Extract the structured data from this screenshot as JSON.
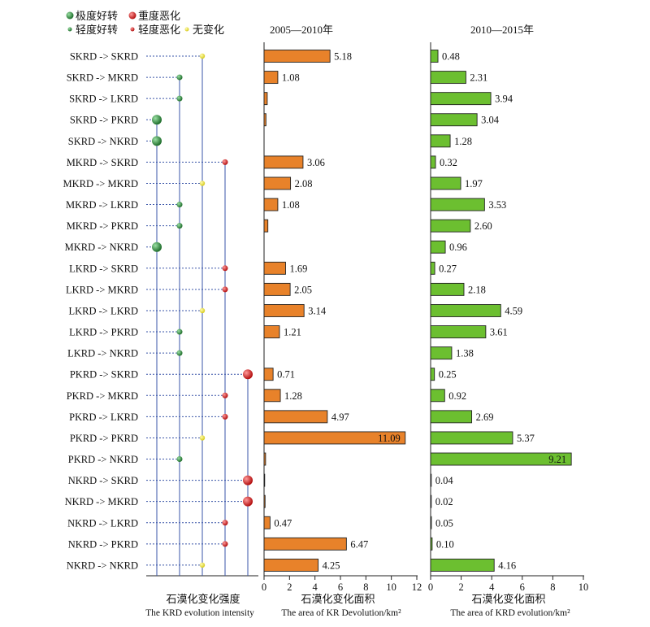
{
  "legend": [
    {
      "label": "极度好转",
      "kind": "big",
      "color": "#2e8b3e"
    },
    {
      "label": "重度恶化",
      "kind": "big",
      "color": "#d42020"
    },
    {
      "label": "轻度好转",
      "kind": "small",
      "color": "#2e8b3e"
    },
    {
      "label": "轻度恶化",
      "kind": "small",
      "color": "#d42020"
    },
    {
      "label": "无变化",
      "kind": "small",
      "color": "#e8e030"
    }
  ],
  "intensity_colors": {
    "big_green": "#2e8b3e",
    "green": "#2e8b3e",
    "yellow": "#e8e030",
    "red": "#d42020",
    "big_red": "#d42020"
  },
  "panel_titles": {
    "p2": "2005—2010年",
    "p3": "2010—2015年"
  },
  "xlabels": {
    "p1_cn": "石漠化变化强度",
    "p1_en": "The KRD evolution intensity",
    "p2_cn": "石漠化变化面积",
    "p2_en": "The area of KR Devolution/km²",
    "p3_cn": "石漠化变化面积",
    "p3_en": "The area of KRD evolution/km²"
  },
  "chart_data": [
    {
      "type": "scatter",
      "panel": "intensity",
      "categories": [
        "SKRD -> SKRD",
        "SKRD -> MKRD",
        "SKRD -> LKRD",
        "SKRD -> PKRD",
        "SKRD -> NKRD",
        "MKRD -> SKRD",
        "MKRD -> MKRD",
        "MKRD -> LKRD",
        "MKRD -> PKRD",
        "MKRD -> NKRD",
        "LKRD -> SKRD",
        "LKRD -> MKRD",
        "LKRD -> LKRD",
        "LKRD -> PKRD",
        "LKRD -> NKRD",
        "PKRD -> SKRD",
        "PKRD -> MKRD",
        "PKRD -> LKRD",
        "PKRD -> PKRD",
        "PKRD -> NKRD",
        "NKRD -> SKRD",
        "NKRD -> MKRD",
        "NKRD -> LKRD",
        "NKRD -> PKRD",
        "NKRD -> NKRD"
      ],
      "x_levels": [
        "极度好转",
        "轻度好转",
        "无变化",
        "轻度恶化",
        "重度恶化"
      ],
      "values": [
        "无变化",
        "轻度好转",
        "轻度好转",
        "极度好转",
        "极度好转",
        "轻度恶化",
        "无变化",
        "轻度好转",
        "轻度好转",
        "极度好转",
        "轻度恶化",
        "轻度恶化",
        "无变化",
        "轻度好转",
        "轻度好转",
        "重度恶化",
        "轻度恶化",
        "轻度恶化",
        "无变化",
        "轻度好转",
        "重度恶化",
        "重度恶化",
        "轻度恶化",
        "轻度恶化",
        "无变化"
      ],
      "xlabel": "石漠化变化强度 The KRD evolution intensity"
    },
    {
      "type": "bar",
      "panel": "2005-2010",
      "title": "2005—2010年",
      "color": "#e8822a",
      "values": [
        5.18,
        1.08,
        0.25,
        0.15,
        0,
        3.06,
        2.08,
        1.08,
        0.3,
        0,
        1.69,
        2.05,
        3.14,
        1.21,
        0,
        0.71,
        1.28,
        4.97,
        11.09,
        0.12,
        0.05,
        0.08,
        0.47,
        6.47,
        4.25
      ],
      "labels": [
        "5.18",
        "1.08",
        "",
        "",
        "",
        "3.06",
        "2.08",
        "1.08",
        "",
        "",
        "1.69",
        "2.05",
        "3.14",
        "1.21",
        "",
        "0.71",
        "1.28",
        "4.97",
        "11.09",
        "",
        "",
        "",
        "0.47",
        "6.47",
        "4.25"
      ],
      "xlim": [
        0,
        12
      ],
      "xticks": [
        0,
        2,
        4,
        6,
        8,
        10,
        12
      ],
      "xlabel": "石漠化变化面积 The area of KR Devolution/km²"
    },
    {
      "type": "bar",
      "panel": "2010-2015",
      "title": "2010—2015年",
      "color": "#6cbf30",
      "values": [
        0.48,
        2.31,
        3.94,
        3.04,
        1.28,
        0.32,
        1.97,
        3.53,
        2.6,
        0.96,
        0.27,
        2.18,
        4.59,
        3.61,
        1.38,
        0.25,
        0.92,
        2.69,
        5.37,
        9.21,
        0.04,
        0.02,
        0.05,
        0.1,
        4.16
      ],
      "labels": [
        "0.48",
        "2.31",
        "3.94",
        "3.04",
        "1.28",
        "0.32",
        "1.97",
        "3.53",
        "2.60",
        "0.96",
        "0.27",
        "2.18",
        "4.59",
        "3.61",
        "1.38",
        "0.25",
        "0.92",
        "2.69",
        "5.37",
        "9.21",
        "0.04",
        "0.02",
        "0.05",
        "0.10",
        "4.16"
      ],
      "xlim": [
        0,
        10
      ],
      "xticks": [
        0,
        2,
        4,
        6,
        8,
        10
      ],
      "xlabel": "石漠化变化面积 The area of KRD evolution/km²"
    }
  ]
}
